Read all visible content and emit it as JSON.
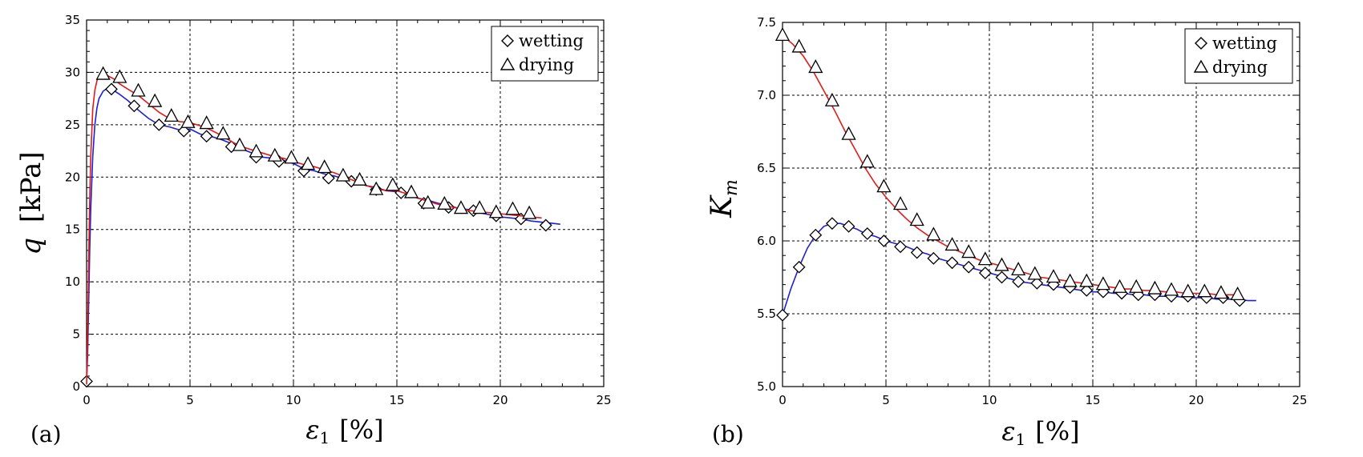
{
  "colors": {
    "wetting": "#1f1fd6",
    "drying": "#e01b1b",
    "grid": "#000000"
  },
  "chart_data": [
    {
      "type": "line",
      "panel_label": "(a)",
      "ylabel_symbol": "q",
      "ylabel_unit": "[kPa]",
      "xlabel_symbol": "ε",
      "xlabel_subscript": "1",
      "xlabel_unit": "[%]",
      "xlim": [
        0,
        25
      ],
      "ylim": [
        0,
        35
      ],
      "xticks": [
        "0",
        "5",
        "10",
        "15",
        "20",
        "25"
      ],
      "yticks": [
        "0",
        "5",
        "10",
        "15",
        "20",
        "25",
        "30",
        "35"
      ],
      "grid": true,
      "legend_position": "top-right",
      "series": [
        {
          "name": "wetting",
          "color": "#1f1fd6",
          "marker": "diamond",
          "x": [
            0,
            0.05,
            0.1,
            0.15,
            0.2,
            0.3,
            0.4,
            0.5,
            0.6,
            0.8,
            1.0,
            1.3,
            1.6,
            2.0,
            2.5,
            3.0,
            3.5,
            4.0,
            4.5,
            5.0,
            5.5,
            6.0,
            6.5,
            7.0,
            7.5,
            8.0,
            8.5,
            9.0,
            9.5,
            10.0,
            10.5,
            11.0,
            11.5,
            12.0,
            12.5,
            13.0,
            13.5,
            14.0,
            14.5,
            15.0,
            15.5,
            16.0,
            16.5,
            17.0,
            17.5,
            18.0,
            18.5,
            19.0,
            19.5,
            20.0,
            20.5,
            21.0,
            21.5,
            22.0,
            22.5,
            22.9
          ],
          "y": [
            0.4,
            3,
            8,
            13,
            17,
            22,
            25,
            26.6,
            27.5,
            28.2,
            28.5,
            28.3,
            27.9,
            27.3,
            26.4,
            25.6,
            25.0,
            24.8,
            24.5,
            24.6,
            24.1,
            23.9,
            23.6,
            23.2,
            22.7,
            22.3,
            21.9,
            21.8,
            21.6,
            21.3,
            20.8,
            20.6,
            20.3,
            20.1,
            19.8,
            19.6,
            19.2,
            19.0,
            18.7,
            18.6,
            18.3,
            18.0,
            17.8,
            17.5,
            17.3,
            17.0,
            16.9,
            16.6,
            16.4,
            16.2,
            16.1,
            16.0,
            15.8,
            15.7,
            15.6,
            15.5
          ],
          "markers_x": [
            0,
            1.2,
            2.3,
            3.5,
            4.7,
            5.8,
            7.0,
            8.2,
            9.3,
            10.5,
            11.7,
            12.8,
            14.0,
            15.2,
            16.3,
            17.5,
            18.7,
            19.8,
            21.0,
            22.2
          ],
          "markers_y": [
            0.5,
            28.4,
            26.8,
            25.0,
            24.4,
            23.9,
            22.9,
            21.9,
            21.5,
            20.6,
            19.9,
            19.6,
            18.8,
            18.5,
            17.5,
            17.1,
            16.8,
            16.3,
            16.0,
            15.4
          ]
        },
        {
          "name": "drying",
          "color": "#e01b1b",
          "marker": "triangle",
          "x": [
            0,
            0.05,
            0.1,
            0.15,
            0.2,
            0.3,
            0.4,
            0.5,
            0.6,
            0.8,
            1.0,
            1.3,
            1.6,
            2.0,
            2.5,
            3.0,
            3.5,
            4.0,
            4.5,
            5.0,
            5.5,
            6.0,
            6.5,
            7.0,
            7.5,
            8.0,
            8.5,
            9.0,
            9.5,
            10.0,
            10.5,
            11.0,
            11.5,
            12.0,
            12.5,
            13.0,
            13.5,
            14.0,
            14.5,
            15.0,
            15.5,
            16.0,
            16.5,
            17.0,
            17.5,
            18.0,
            18.5,
            19.0,
            19.5,
            20.0,
            20.5,
            21.0,
            21.5,
            22.0
          ],
          "y": [
            0.2,
            5,
            12,
            18,
            22,
            26.5,
            28.3,
            29.2,
            29.6,
            29.8,
            29.7,
            29.4,
            28.9,
            28.4,
            27.8,
            27.0,
            26.2,
            25.6,
            25.3,
            25.2,
            24.9,
            24.5,
            24.0,
            23.4,
            22.9,
            22.6,
            22.3,
            22.0,
            21.8,
            21.5,
            21.2,
            21.0,
            20.7,
            20.4,
            20.0,
            19.6,
            19.2,
            18.9,
            18.7,
            18.7,
            18.4,
            18.0,
            17.7,
            17.4,
            17.2,
            17.0,
            16.8,
            16.7,
            16.6,
            16.5,
            16.4,
            16.3,
            16.2,
            16.1
          ],
          "markers_x": [
            0.8,
            1.6,
            2.5,
            3.3,
            4.1,
            4.9,
            5.8,
            6.6,
            7.4,
            8.2,
            9.1,
            9.9,
            10.7,
            11.5,
            12.4,
            13.2,
            14.0,
            14.8,
            15.7,
            16.5,
            17.3,
            18.1,
            19.0,
            19.8,
            20.6,
            21.4
          ],
          "markers_y": [
            29.8,
            29.5,
            28.2,
            27.2,
            25.8,
            25.2,
            25.1,
            24.1,
            23.0,
            22.4,
            22.0,
            21.8,
            21.2,
            20.9,
            20.1,
            19.7,
            18.8,
            19.2,
            18.5,
            17.5,
            17.4,
            17.0,
            17.0,
            16.6,
            16.9,
            16.5
          ]
        }
      ]
    },
    {
      "type": "line",
      "panel_label": "(b)",
      "ylabel_symbol": "K",
      "ylabel_subscript": "m",
      "xlabel_symbol": "ε",
      "xlabel_subscript": "1",
      "xlabel_unit": "[%]",
      "xlim": [
        0,
        25
      ],
      "ylim": [
        5.0,
        7.5
      ],
      "xticks": [
        "0",
        "5",
        "10",
        "15",
        "20",
        "25"
      ],
      "yticks": [
        "5.0",
        "5.5",
        "6.0",
        "6.5",
        "7.0",
        "7.5"
      ],
      "grid": true,
      "legend_position": "top-right",
      "series": [
        {
          "name": "wetting",
          "color": "#1f1fd6",
          "marker": "diamond",
          "x": [
            0,
            0.4,
            0.8,
            1.2,
            1.6,
            2.0,
            2.4,
            2.8,
            3.2,
            3.6,
            4.0,
            4.5,
            5.0,
            5.5,
            6.0,
            6.5,
            7.0,
            7.5,
            8.0,
            8.5,
            9.0,
            9.5,
            10.0,
            10.5,
            11.0,
            11.5,
            12.0,
            12.5,
            13.0,
            13.5,
            14.0,
            14.5,
            15.0,
            15.5,
            16.0,
            16.5,
            17.0,
            17.5,
            18.0,
            18.5,
            19.0,
            19.5,
            20.0,
            20.5,
            21.0,
            21.5,
            22.0,
            22.5,
            22.9
          ],
          "y": [
            5.49,
            5.67,
            5.82,
            5.95,
            6.04,
            6.1,
            6.12,
            6.12,
            6.1,
            6.08,
            6.05,
            6.03,
            6.0,
            5.98,
            5.96,
            5.93,
            5.91,
            5.88,
            5.86,
            5.84,
            5.82,
            5.8,
            5.78,
            5.76,
            5.74,
            5.72,
            5.71,
            5.7,
            5.69,
            5.68,
            5.67,
            5.66,
            5.65,
            5.65,
            5.64,
            5.64,
            5.63,
            5.63,
            5.62,
            5.62,
            5.62,
            5.61,
            5.61,
            5.61,
            5.6,
            5.6,
            5.6,
            5.59,
            5.59
          ],
          "markers_x": [
            0,
            0.8,
            1.6,
            2.4,
            3.2,
            4.1,
            4.9,
            5.7,
            6.5,
            7.3,
            8.2,
            9.0,
            9.8,
            10.6,
            11.4,
            12.3,
            13.1,
            13.9,
            14.7,
            15.5,
            16.4,
            17.2,
            18.0,
            18.8,
            19.6,
            20.5,
            21.3,
            22.1
          ],
          "markers_y": [
            5.49,
            5.82,
            6.04,
            6.12,
            6.1,
            6.05,
            6.0,
            5.96,
            5.92,
            5.88,
            5.85,
            5.82,
            5.78,
            5.75,
            5.72,
            5.71,
            5.7,
            5.68,
            5.66,
            5.65,
            5.64,
            5.63,
            5.63,
            5.62,
            5.62,
            5.61,
            5.61,
            5.59
          ]
        },
        {
          "name": "drying",
          "color": "#e01b1b",
          "marker": "triangle",
          "x": [
            0,
            0.5,
            1.0,
            1.5,
            2.0,
            2.5,
            3.0,
            3.5,
            4.0,
            4.5,
            5.0,
            5.5,
            6.0,
            6.5,
            7.0,
            7.5,
            8.0,
            8.5,
            9.0,
            9.5,
            10.0,
            10.5,
            11.0,
            11.5,
            12.0,
            12.5,
            13.0,
            13.5,
            14.0,
            14.5,
            15.0,
            15.5,
            16.0,
            16.5,
            17.0,
            17.5,
            18.0,
            18.5,
            19.0,
            19.5,
            20.0,
            20.5,
            21.0,
            21.5,
            22.0
          ],
          "y": [
            7.41,
            7.35,
            7.27,
            7.16,
            7.03,
            6.9,
            6.76,
            6.63,
            6.5,
            6.39,
            6.3,
            6.22,
            6.15,
            6.09,
            6.04,
            6.0,
            5.96,
            5.93,
            5.9,
            5.87,
            5.85,
            5.83,
            5.81,
            5.79,
            5.77,
            5.75,
            5.74,
            5.73,
            5.72,
            5.71,
            5.7,
            5.69,
            5.68,
            5.67,
            5.67,
            5.66,
            5.66,
            5.65,
            5.65,
            5.64,
            5.64,
            5.64,
            5.63,
            5.63,
            5.63
          ],
          "markers_x": [
            0,
            0.8,
            1.6,
            2.4,
            3.2,
            4.1,
            4.9,
            5.7,
            6.5,
            7.3,
            8.2,
            9.0,
            9.8,
            10.6,
            11.4,
            12.2,
            13.1,
            13.9,
            14.7,
            15.5,
            16.3,
            17.1,
            18.0,
            18.8,
            19.6,
            20.4,
            21.2,
            22.0
          ],
          "markers_y": [
            7.41,
            7.33,
            7.19,
            6.96,
            6.73,
            6.54,
            6.37,
            6.25,
            6.14,
            6.04,
            5.97,
            5.92,
            5.87,
            5.83,
            5.8,
            5.77,
            5.75,
            5.72,
            5.72,
            5.7,
            5.68,
            5.68,
            5.67,
            5.66,
            5.65,
            5.65,
            5.64,
            5.63
          ]
        }
      ]
    }
  ]
}
